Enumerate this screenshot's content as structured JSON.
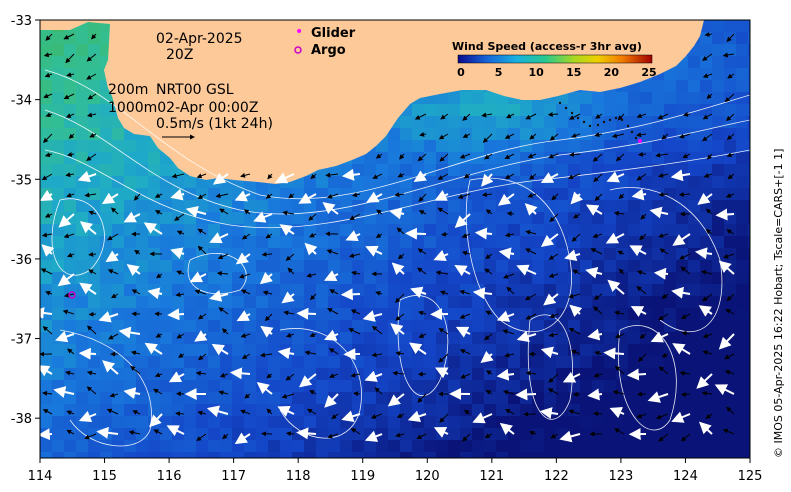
{
  "map": {
    "x_axis_ticks": [
      "114",
      "115",
      "116",
      "117",
      "118",
      "119",
      "120",
      "121",
      "122",
      "123",
      "124",
      "125"
    ],
    "y_axis_ticks": [
      "-33",
      "-34",
      "-35",
      "-36",
      "-37",
      "-38"
    ],
    "lon_range": [
      114,
      125
    ],
    "lat_range": [
      -38.5,
      -33
    ]
  },
  "annotations": {
    "date": "02-Apr-2025",
    "time": "20Z",
    "depth_200": "200m",
    "product": "NRT00 GSL",
    "depth_1000_time": "1000m02-Apr 00:00Z",
    "scale": "0.5m/s (1kt 24h)"
  },
  "legend": {
    "glider": "Glider",
    "argo": "Argo",
    "glider_color": "#ff00ff",
    "argo_color": "#cc00cc"
  },
  "colorbar": {
    "title": "Wind Speed (access-r 3hr avg)",
    "ticks": [
      "0",
      "5",
      "10",
      "15",
      "20",
      "25"
    ]
  },
  "credit": "© IMOS 05-Apr-2025 16:22 Hobart; Tscale=CARS+[-1 1]",
  "colors": {
    "land": "#fdc999",
    "ocean_deep": "#0b2ea8",
    "ocean_shelf": "#3fb88a"
  }
}
